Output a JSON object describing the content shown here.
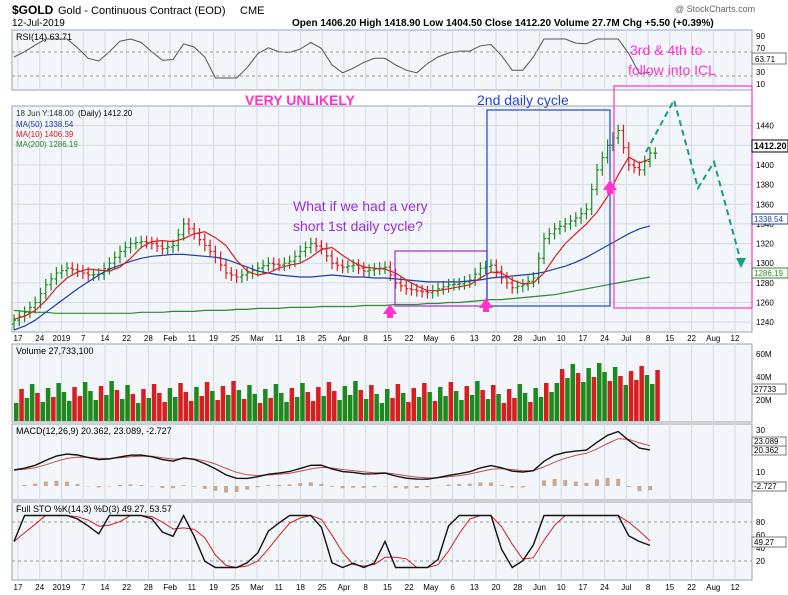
{
  "header": {
    "symbol": "$GOLD",
    "name": "Gold - Continuous Contract (EOD)",
    "exchange": "CME",
    "date": "12-Jul-2019",
    "brand": "@ StockCharts.com",
    "quote": "Open 1406.20  High 1418.90  Low 1404.50  Close 1412.20  Volume 27.7M  Chg +5.50 (+0.39%)"
  },
  "colors": {
    "up": "#1e8a1e",
    "down": "#d81e1e",
    "ma50": "#1f3fa8",
    "ma10": "#d81e1e",
    "ma200": "#2e8a2e",
    "magenta": "#ff33cc",
    "purple": "#9b2fd6",
    "blue": "#2244dd",
    "rsi": "#555555",
    "macd": "#111111",
    "signal": "#c0504d",
    "sto_k": "#111111",
    "sto_d": "#d81e1e",
    "grid": "#d5dbe3",
    "bg": "#f2f5fa"
  },
  "rsi": {
    "label": "RSI(14) 63.71",
    "value_tag": "63.71",
    "ticks": [
      "90",
      "70",
      "50",
      "30",
      "10"
    ]
  },
  "price": {
    "legend_top": "18 Jun Y:148.00",
    "legend_main": "(Daily) 1412.20",
    "ma50": "MA(50) 1338.54",
    "ma10": "MA(10) 1406.39",
    "ma200": "MA(200) 1286.19",
    "ticks": [
      "1440",
      "1420",
      "1400",
      "1380",
      "1360",
      "1340",
      "1320",
      "1300",
      "1280",
      "1260",
      "1240"
    ],
    "last_tag": "1412.20",
    "ma50_tag": "1338.54",
    "ma200_tag": "1286.19"
  },
  "annotations": {
    "very_unlikely": "VERY UNLIKELY",
    "second_cycle": "2nd daily cycle",
    "what_if_1": "What if we had a very",
    "what_if_2": "short 1st daily cycle?",
    "third_fourth_1": "3rd &  4th to",
    "third_fourth_2": "follow into ICL"
  },
  "volume": {
    "label": "Volume 27,733,100",
    "ticks": [
      "60M",
      "40M",
      "20M"
    ],
    "tag": "27733"
  },
  "macd": {
    "label": "MACD(12,26,9) 20.362, 23.089, -2.727",
    "ticks": [
      "30",
      "20",
      "10"
    ],
    "tag1": "23.089",
    "tag2": "20.362",
    "tag3": "-2.727"
  },
  "sto": {
    "label": "Full STO %K(14,3) %D(3) 49.27, 53.57",
    "ticks": [
      "80",
      "60",
      "40",
      "20"
    ],
    "tag": "49.27"
  },
  "x_axis": [
    "17",
    "24",
    "2019",
    "7",
    "14",
    "22",
    "28",
    "Feb",
    "11",
    "19",
    "25",
    "Mar",
    "11",
    "18",
    "25",
    "Apr",
    "8",
    "15",
    "22",
    "May",
    "6",
    "13",
    "20",
    "28",
    "Jun",
    "10",
    "17",
    "24",
    "Jul",
    "8",
    "15",
    "22",
    "Aug",
    "12"
  ],
  "chart_data": {
    "type": "line",
    "title": "$GOLD Gold - Continuous Contract (EOD) CME",
    "series": [
      {
        "name": "MA(10) 1406.39",
        "values": [
          1243,
          1246,
          1252,
          1262,
          1275,
          1285,
          1291,
          1294,
          1293,
          1292,
          1296,
          1305,
          1316,
          1322,
          1323,
          1322,
          1325,
          1330,
          1332,
          1326,
          1318,
          1303,
          1292,
          1288,
          1290,
          1295,
          1298,
          1300,
          1306,
          1314,
          1316,
          1308,
          1301,
          1296,
          1295,
          1294,
          1290,
          1283,
          1277,
          1272,
          1272,
          1274,
          1276,
          1278,
          1285,
          1291,
          1290,
          1283,
          1279,
          1280,
          1290,
          1306,
          1320,
          1330,
          1340,
          1352,
          1368,
          1390,
          1408,
          1402,
          1406
        ]
      },
      {
        "name": "MA(50) 1338.54",
        "values": [
          1232,
          1236,
          1242,
          1250,
          1258,
          1266,
          1274,
          1281,
          1288,
          1294,
          1298,
          1302,
          1305,
          1307,
          1308,
          1309,
          1309,
          1308,
          1307,
          1306,
          1304,
          1300,
          1296,
          1292,
          1290,
          1288,
          1287,
          1286,
          1286,
          1287,
          1288,
          1287,
          1286,
          1286,
          1285,
          1285,
          1284,
          1283,
          1282,
          1281,
          1281,
          1281,
          1281,
          1282,
          1283,
          1285,
          1286,
          1287,
          1288,
          1289,
          1291,
          1294,
          1297,
          1301,
          1306,
          1312,
          1318,
          1324,
          1330,
          1335,
          1338
        ]
      },
      {
        "name": "MA(200) 1286.19",
        "values": [
          1252,
          1251,
          1250,
          1250,
          1249,
          1249,
          1249,
          1249,
          1249,
          1249,
          1249,
          1249,
          1250,
          1250,
          1250,
          1251,
          1251,
          1251,
          1252,
          1252,
          1252,
          1253,
          1253,
          1254,
          1254,
          1254,
          1255,
          1255,
          1255,
          1256,
          1256,
          1256,
          1256,
          1257,
          1257,
          1257,
          1258,
          1258,
          1258,
          1259,
          1259,
          1260,
          1260,
          1261,
          1262,
          1263,
          1263,
          1264,
          1265,
          1266,
          1267,
          1268,
          1270,
          1272,
          1274,
          1276,
          1278,
          1280,
          1282,
          1284,
          1286
        ]
      }
    ],
    "ohlc_close": [
      1242,
      1250,
      1260,
      1278,
      1290,
      1295,
      1292,
      1288,
      1289,
      1300,
      1312,
      1320,
      1322,
      1320,
      1315,
      1318,
      1340,
      1330,
      1318,
      1306,
      1290,
      1286,
      1290,
      1295,
      1300,
      1298,
      1302,
      1312,
      1320,
      1315,
      1300,
      1296,
      1298,
      1292,
      1294,
      1296,
      1280,
      1274,
      1272,
      1270,
      1274,
      1278,
      1279,
      1283,
      1295,
      1298,
      1285,
      1275,
      1278,
      1285,
      1325,
      1335,
      1340,
      1346,
      1355,
      1395,
      1420,
      1435,
      1400,
      1395,
      1412
    ],
    "ylim": [
      1230,
      1460
    ],
    "projection": [
      [
        1412,
        1400
      ],
      [
        1455,
        1420
      ],
      [
        1375,
        1440
      ],
      [
        1390,
        1450
      ],
      [
        1295,
        1480
      ]
    ]
  }
}
